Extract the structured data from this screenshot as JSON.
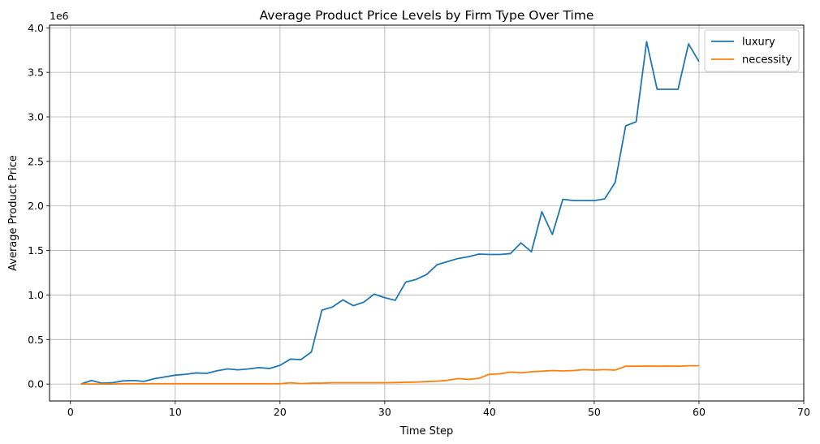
{
  "chart_data": {
    "type": "line",
    "title": "Average Product Price Levels by Firm Type Over Time",
    "xlabel": "Time Step",
    "ylabel": "Average Product Price",
    "y_offset_label": "1e6",
    "xlim": [
      -2,
      70
    ],
    "ylim": [
      -190000,
      4030000
    ],
    "x_ticks": [
      0,
      10,
      20,
      30,
      40,
      50,
      60,
      70
    ],
    "y_ticks": [
      0,
      500000,
      1000000,
      1500000,
      2000000,
      2500000,
      3000000,
      3500000,
      4000000
    ],
    "y_tick_labels": [
      "0.0",
      "0.5",
      "1.0",
      "1.5",
      "2.0",
      "2.5",
      "3.0",
      "3.5",
      "4.0"
    ],
    "grid": true,
    "legend_position": "top-right",
    "x": [
      1,
      2,
      3,
      4,
      5,
      6,
      7,
      8,
      9,
      10,
      11,
      12,
      13,
      14,
      15,
      16,
      17,
      18,
      19,
      20,
      21,
      22,
      23,
      24,
      25,
      26,
      27,
      28,
      29,
      30,
      31,
      32,
      33,
      34,
      35,
      36,
      37,
      38,
      39,
      40,
      41,
      42,
      43,
      44,
      45,
      46,
      47,
      48,
      49,
      50,
      51,
      52,
      53,
      54,
      55,
      56,
      57,
      58,
      59,
      60
    ],
    "series": [
      {
        "name": "luxury",
        "color": "#1f77b4",
        "values": [
          0,
          40000,
          10000,
          15000,
          35000,
          40000,
          30000,
          60000,
          80000,
          100000,
          110000,
          125000,
          120000,
          150000,
          170000,
          160000,
          170000,
          185000,
          175000,
          210000,
          280000,
          275000,
          360000,
          830000,
          865000,
          945000,
          880000,
          920000,
          1010000,
          970000,
          940000,
          1145000,
          1175000,
          1230000,
          1340000,
          1375000,
          1410000,
          1430000,
          1460000,
          1455000,
          1455000,
          1465000,
          1585000,
          1485000,
          1935000,
          1680000,
          2075000,
          2060000,
          2060000,
          2060000,
          2080000,
          2265000,
          2900000,
          2945000,
          3845000,
          3310000,
          3310000,
          3310000,
          3820000,
          3620000
        ]
      },
      {
        "name": "necessity",
        "color": "#ff7f0e",
        "values": [
          0,
          0,
          0,
          0,
          3000,
          3000,
          3000,
          3000,
          3000,
          3000,
          3000,
          3000,
          3000,
          3000,
          3000,
          3000,
          3000,
          3000,
          3000,
          3000,
          15000,
          5000,
          10000,
          10000,
          15000,
          15000,
          15000,
          15000,
          15000,
          15000,
          17000,
          20000,
          22000,
          28000,
          32000,
          42000,
          62000,
          52000,
          65000,
          110000,
          115000,
          135000,
          127000,
          138000,
          145000,
          152000,
          147000,
          152000,
          162000,
          157000,
          162000,
          157000,
          200000,
          200000,
          202000,
          200000,
          202000,
          200000,
          205000,
          205000
        ]
      }
    ]
  }
}
